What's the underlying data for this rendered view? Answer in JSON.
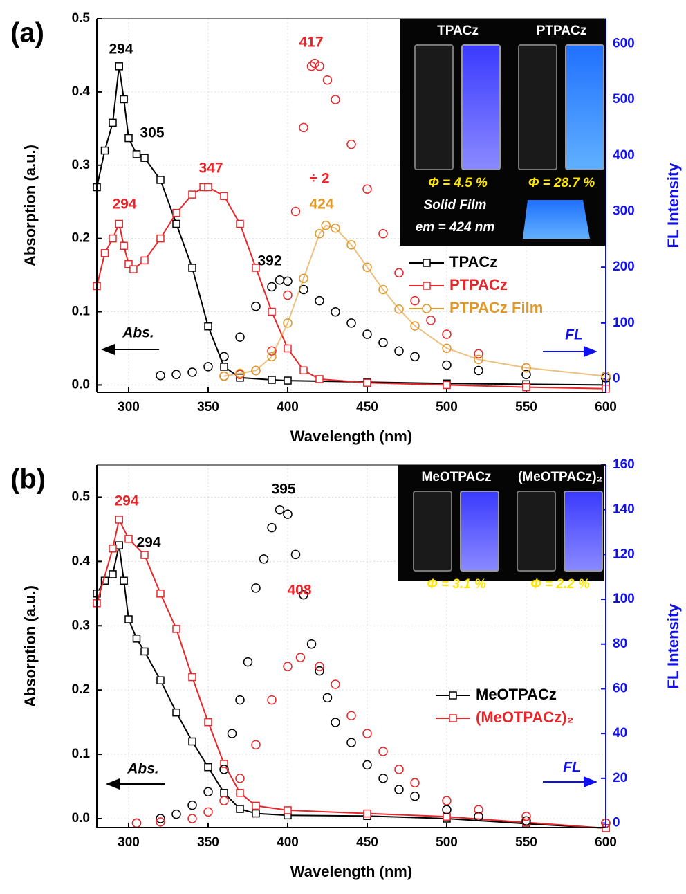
{
  "chart_data": [
    {
      "type": "line",
      "panel_label": "(a)",
      "x_label": "Wavelength (nm)",
      "y_label": "Absorption (a.u.)",
      "y2_label": "FL Intensity",
      "xlim": [
        280,
        600
      ],
      "xticks": [
        300,
        350,
        400,
        450,
        500,
        550,
        600
      ],
      "ylim": [
        -0.01,
        0.5
      ],
      "yticks": [
        {
          "value": 0,
          "label": "0.0"
        },
        0.1,
        0.2,
        0.3,
        0.4,
        0.5
      ],
      "y2lim": [
        -24,
        645
      ],
      "y2ticks": [
        0,
        100,
        200,
        300,
        400,
        500,
        600
      ],
      "grid": true,
      "abs_label": "Abs.",
      "fl_label": "FL",
      "series": [
        {
          "name": "TPACz",
          "color": "#000000",
          "marker": "square",
          "line": true,
          "x": [
            280,
            285,
            290,
            294,
            297,
            300,
            305,
            310,
            320,
            330,
            340,
            350,
            360,
            370,
            390,
            400,
            450,
            500,
            550,
            600
          ],
          "values": [
            0.27,
            0.32,
            0.358,
            0.435,
            0.39,
            0.337,
            0.315,
            0.31,
            0.28,
            0.22,
            0.16,
            0.08,
            0.025,
            0.01,
            0.007,
            0.006,
            0.004,
            0.002,
            0.001,
            0.0
          ]
        },
        {
          "name": "PTPACz",
          "color": "#e8262a",
          "marker": "square",
          "line": true,
          "x": [
            280,
            285,
            290,
            294,
            297,
            300,
            303,
            310,
            320,
            330,
            340,
            347,
            350,
            360,
            370,
            380,
            390,
            400,
            410,
            420,
            450,
            500,
            550,
            600
          ],
          "values": [
            0.135,
            0.18,
            0.2,
            0.22,
            0.19,
            0.165,
            0.158,
            0.17,
            0.2,
            0.235,
            0.26,
            0.27,
            0.27,
            0.258,
            0.22,
            0.16,
            0.1,
            0.05,
            0.02,
            0.008,
            0.003,
            0.0,
            -0.003,
            -0.005
          ]
        },
        {
          "color": "#000000",
          "marker": "circle",
          "line": false,
          "axis": "y2",
          "x": [
            320,
            330,
            340,
            350,
            360,
            370,
            380,
            390,
            395,
            400,
            410,
            420,
            430,
            440,
            450,
            460,
            470,
            480,
            500,
            520,
            550,
            600
          ],
          "values": [
            6,
            8,
            12,
            22,
            40,
            75,
            130,
            165,
            177,
            175,
            160,
            140,
            120,
            100,
            80,
            65,
            50,
            40,
            25,
            15,
            8,
            2
          ]
        },
        {
          "color": "#e8262a",
          "marker": "circle",
          "line": false,
          "axis": "y2",
          "x": [
            360,
            370,
            380,
            390,
            400,
            405,
            410,
            415,
            417,
            420,
            425,
            430,
            440,
            450,
            460,
            470,
            480,
            490,
            500,
            520,
            550,
            600
          ],
          "values": [
            5,
            8,
            15,
            50,
            150,
            300,
            450,
            560,
            565,
            560,
            535,
            500,
            420,
            340,
            260,
            190,
            140,
            105,
            80,
            45,
            20,
            5
          ]
        },
        {
          "name": "PTPACz Film",
          "color": "#e0982a",
          "marker": "circle",
          "line": true,
          "axis": "y2",
          "x": [
            360,
            370,
            380,
            390,
            400,
            410,
            420,
            424,
            430,
            440,
            450,
            460,
            470,
            480,
            500,
            520,
            550,
            600
          ],
          "values": [
            5,
            10,
            15,
            40,
            100,
            180,
            260,
            275,
            270,
            240,
            200,
            160,
            125,
            95,
            55,
            35,
            20,
            5
          ]
        }
      ],
      "annotations": [
        {
          "text": "294",
          "color": "#000000"
        },
        {
          "text": "305",
          "color": "#000000"
        },
        {
          "text": "347",
          "color": "#e8262a"
        },
        {
          "text": "294",
          "color": "#e8262a"
        },
        {
          "text": "417",
          "color": "#e8262a"
        },
        {
          "text": "÷ 2",
          "color": "#e8262a"
        },
        {
          "text": "424",
          "color": "#e0982a"
        },
        {
          "text": "392",
          "color": "#000000"
        }
      ],
      "inset": {
        "titles": [
          "TPACz",
          "PTPACz"
        ],
        "yields": [
          "Φ = 4.5 %",
          "Φ = 28.7 %"
        ],
        "film": [
          "Solid Film",
          "em = 424 nm"
        ]
      }
    },
    {
      "type": "line",
      "panel_label": "(b)",
      "x_label": "Wavelength (nm)",
      "y_label": "Absorption (a.u.)",
      "y2_label": "FL Intensity",
      "xlim": [
        280,
        600
      ],
      "xticks": [
        300,
        350,
        400,
        450,
        500,
        550,
        600
      ],
      "ylim": [
        -0.014,
        0.55
      ],
      "yticks": [
        {
          "value": 0,
          "label": "0.0"
        },
        0.1,
        0.2,
        0.3,
        0.4,
        0.5
      ],
      "y2lim": [
        -2,
        160
      ],
      "y2ticks": [
        0,
        20,
        40,
        60,
        80,
        100,
        120,
        140,
        160
      ],
      "grid": true,
      "abs_label": "Abs.",
      "fl_label": "FL",
      "series": [
        {
          "name": "MeOTPACz",
          "color": "#000000",
          "marker": "square",
          "line": true,
          "x": [
            280,
            285,
            290,
            294,
            297,
            300,
            305,
            310,
            320,
            330,
            340,
            350,
            360,
            370,
            380,
            400,
            450,
            500,
            550,
            600
          ],
          "values": [
            0.35,
            0.37,
            0.38,
            0.425,
            0.37,
            0.31,
            0.28,
            0.26,
            0.215,
            0.165,
            0.12,
            0.08,
            0.04,
            0.015,
            0.008,
            0.005,
            0.004,
            0.0,
            -0.008,
            -0.015
          ]
        },
        {
          "name": "(MeOTPACz)₂",
          "color": "#e8262a",
          "marker": "square",
          "line": true,
          "x": [
            280,
            290,
            294,
            300,
            310,
            320,
            330,
            340,
            350,
            360,
            370,
            380,
            400,
            450,
            500,
            550,
            600
          ],
          "values": [
            0.335,
            0.42,
            0.465,
            0.435,
            0.41,
            0.35,
            0.295,
            0.22,
            0.15,
            0.085,
            0.04,
            0.02,
            0.013,
            0.008,
            0.003,
            -0.006,
            -0.015
          ]
        },
        {
          "color": "#000000",
          "marker": "circle",
          "line": false,
          "axis": "y2",
          "x": [
            305,
            320,
            330,
            340,
            350,
            360,
            365,
            370,
            375,
            380,
            385,
            390,
            395,
            400,
            405,
            410,
            415,
            420,
            425,
            430,
            440,
            450,
            460,
            470,
            480,
            500,
            520,
            550,
            600
          ],
          "values": [
            0,
            2,
            4,
            8,
            14,
            24,
            40,
            55,
            72,
            105,
            118,
            132,
            140,
            138,
            120,
            102,
            80,
            68,
            56,
            45,
            36,
            26,
            20,
            15,
            12,
            6,
            3,
            1,
            0
          ]
        },
        {
          "color": "#e8262a",
          "marker": "circle",
          "line": false,
          "axis": "y2",
          "x": [
            305,
            320,
            340,
            350,
            360,
            370,
            380,
            390,
            400,
            408,
            420,
            430,
            440,
            450,
            460,
            470,
            480,
            500,
            520,
            550,
            600
          ],
          "values": [
            0,
            0.5,
            2,
            5,
            10,
            20,
            35,
            55,
            70,
            74,
            70,
            62,
            48,
            40,
            32,
            24,
            18,
            10,
            6,
            3,
            0
          ]
        }
      ],
      "annotations": [
        {
          "text": "294",
          "color": "#e8262a"
        },
        {
          "text": "294",
          "color": "#000000"
        },
        {
          "text": "395",
          "color": "#000000"
        },
        {
          "text": "408",
          "color": "#e8262a"
        }
      ],
      "inset": {
        "titles": [
          "MeOTPACz",
          "(MeOTPACz)₂"
        ],
        "yields": [
          "Φ = 3.1 %",
          "Φ = 2.2 %"
        ]
      }
    }
  ]
}
